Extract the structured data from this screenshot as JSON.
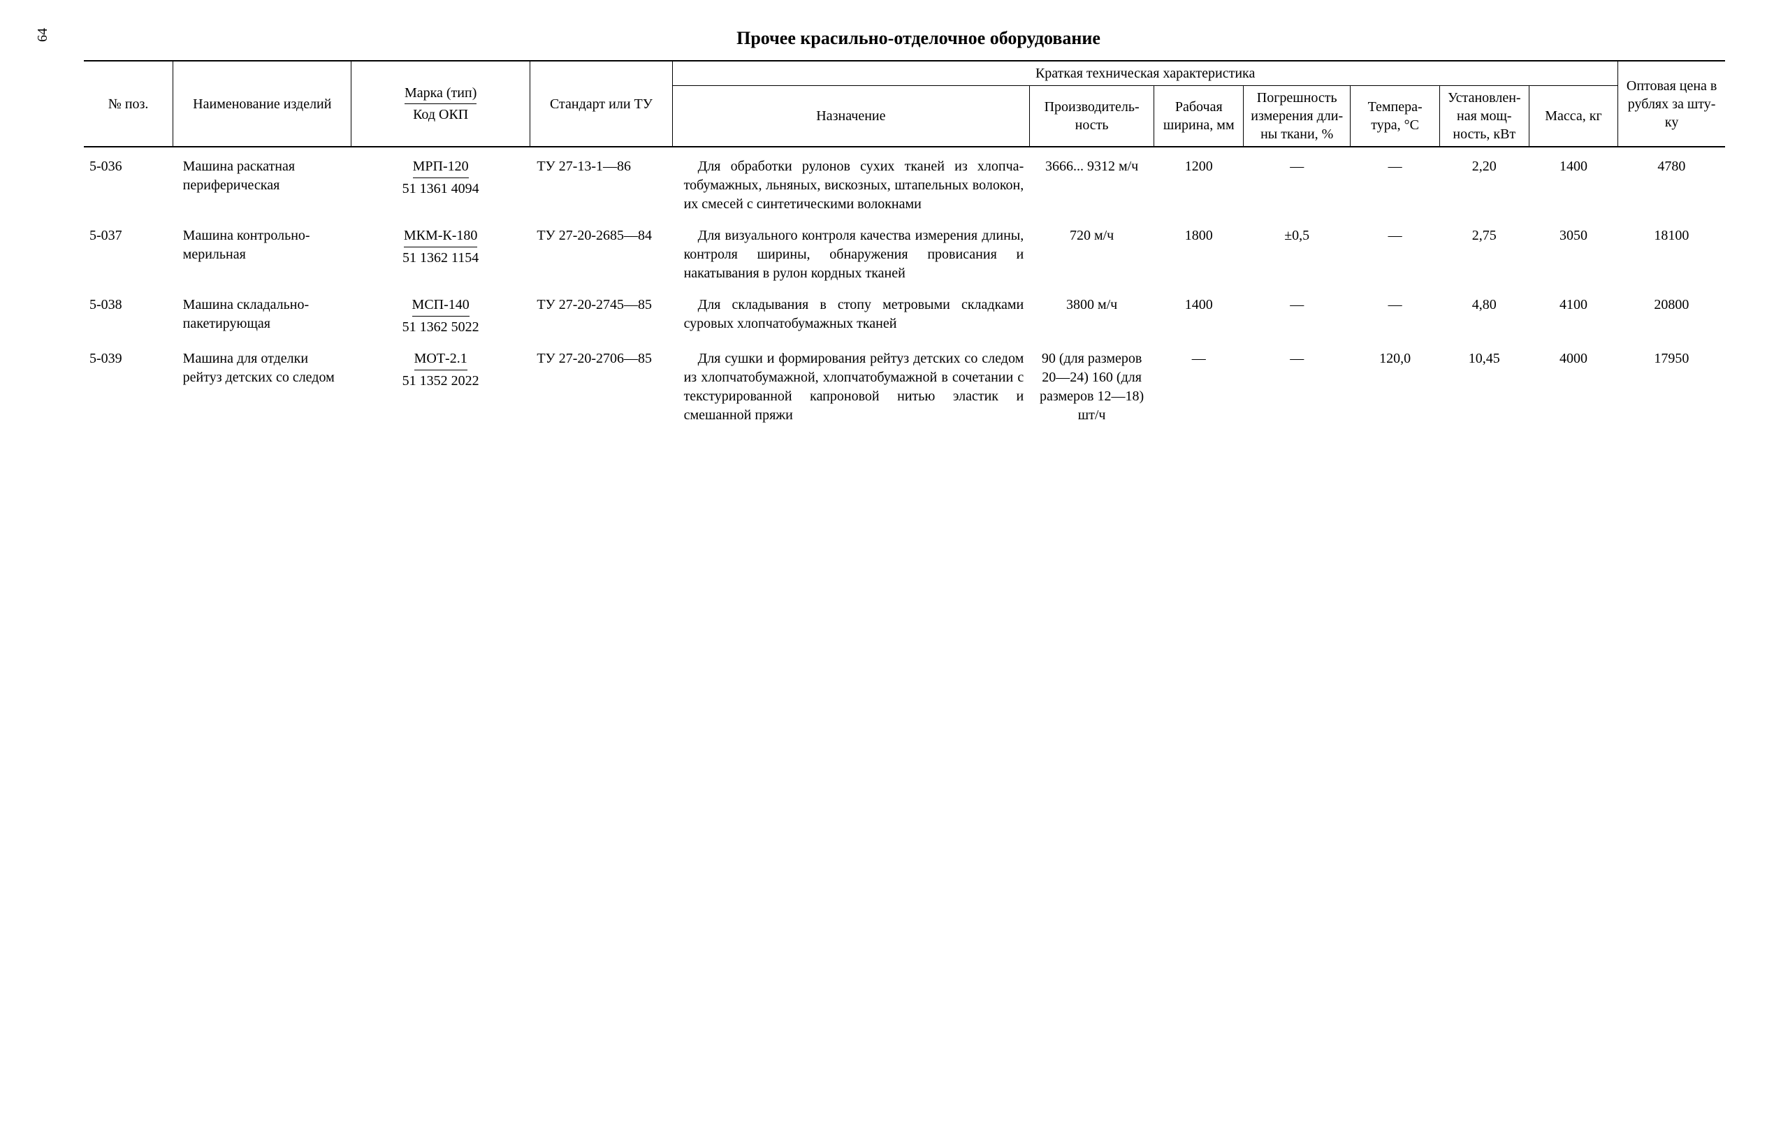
{
  "page_number": "64",
  "title": "Прочее красильно-отделочное оборудование",
  "headers": {
    "poz": "№ поз.",
    "name": "Наиме­нование изделий",
    "marka_top": "Марка (тип)",
    "marka_bottom": "Код ОКП",
    "standard": "Стандарт или ТУ",
    "tech_group": "Краткая техническая характеристика",
    "purpose": "Назначение",
    "proizv": "Произво­дитель­ность",
    "width": "Рабо­чая шири­на, мм",
    "accuracy": "Погреш­ность измере­ния дли­ны ткани, %",
    "temp": "Тем­пера­тура, °C",
    "power": "Уста­новлен­ная мощ­ность, кВт",
    "mass": "Мас­са, кг",
    "price": "Опто­вая це­на в рублях за шту­ку"
  },
  "rows": [
    {
      "poz": "5-036",
      "name": "Машина раскатная перифери­ческая",
      "marka_top": "МРП-120",
      "marka_bottom": "51 1361 4094",
      "standard": "ТУ 27-13-1—86",
      "purpose": "Для обработки рулонов сухих тканей из хлопча­тобумажных, льняных, ви­скозных, штапельных во­локон, их смесей с синте­тическими волокнами",
      "proizv": "3666... 9312 м/ч",
      "width": "1200",
      "accuracy": "—",
      "temp": "—",
      "power": "2,20",
      "mass": "1400",
      "price": "4780"
    },
    {
      "poz": "5-037",
      "name": "Машина контрольно-мерильная",
      "marka_top": "МКМ-К-180",
      "marka_bottom": "51 1362 1154",
      "standard": "ТУ 27-20-2685—84",
      "purpose": "Для визуального кон­троля качества измерения длины, контроля ширины, обнаружения провисания и накатывания в рулон кордных тканей",
      "proizv": "720 м/ч",
      "width": "1800",
      "accuracy": "±0,5",
      "temp": "—",
      "power": "2,75",
      "mass": "3050",
      "price": "18100"
    },
    {
      "poz": "5-038",
      "name": "Машина складально-пакетирую­щая",
      "marka_top": "МСП-140",
      "marka_bottom": "51 1362 5022",
      "standard": "ТУ 27-20-2745—85",
      "purpose": "Для складывания в сто­пу метровыми складками суровых хлопчатобумаж­ных тканей",
      "proizv": "3800 м/ч",
      "width": "1400",
      "accuracy": "—",
      "temp": "—",
      "power": "4,80",
      "mass": "4100",
      "price": "20800"
    },
    {
      "poz": "5-039",
      "name": "Машина для отделки рейтуз дет­ских со сле­дом",
      "marka_top": "МОТ-2.1",
      "marka_bottom": "51 1352 2022",
      "standard": "ТУ 27-20-2706—85",
      "purpose": "Для сушки и формиро­вания рейтуз детских со следом из хлопчатобумаж­ной, хлопчатобумажной в сочетании с текстуриро­ванной капроновой нитью эластик и смешанной пря­жи",
      "proizv": "90 (для размеров 20—24) 160 (для размеров 12—18) шт/ч",
      "width": "—",
      "accuracy": "—",
      "temp": "120,0",
      "power": "10,45",
      "mass": "4000",
      "price": "17950"
    }
  ]
}
